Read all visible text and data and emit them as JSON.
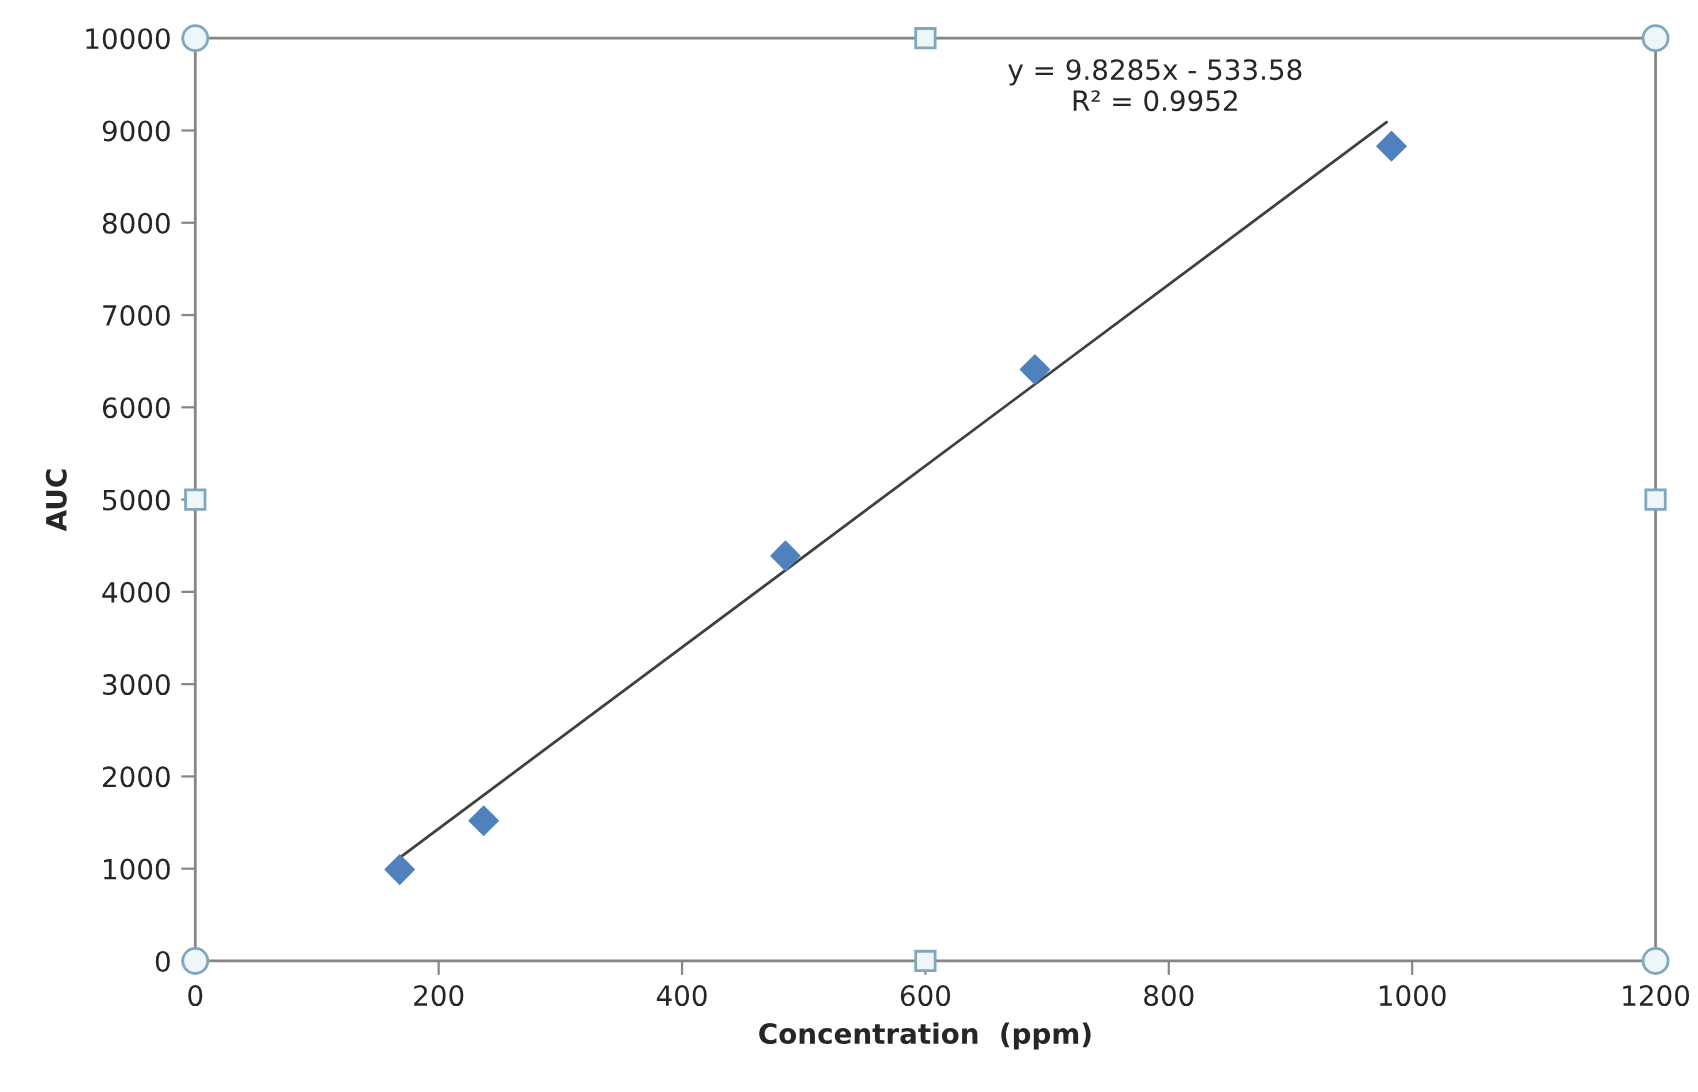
{
  "chart_data": {
    "type": "scatter",
    "xlabel": "Concentration  (ppm)",
    "ylabel": "AUC",
    "series": [
      {
        "color": "#4f81bd",
        "marker": "diamond",
        "x": [
          168,
          237,
          485,
          690,
          983
        ],
        "values": [
          990,
          1520,
          4390,
          6410,
          8830
        ]
      },
      {
        "type": "line",
        "color": "#404040",
        "marker": "none",
        "line_style": "solid",
        "x": [
          167,
          979
        ],
        "values": [
          1110,
          9090
        ]
      }
    ],
    "annotations": [
      "y = 9.8285x - 533.58",
      "R² = 0.9952"
    ],
    "xlim": [
      0,
      1200
    ],
    "xticks": [
      0,
      200,
      400,
      600,
      800,
      1000,
      1200
    ],
    "ylim": [
      0,
      10000
    ],
    "yticks": [
      0,
      1000,
      2000,
      3000,
      4000,
      5000,
      6000,
      7000,
      8000,
      9000,
      10000
    ],
    "grid": false,
    "legend": false
  }
}
